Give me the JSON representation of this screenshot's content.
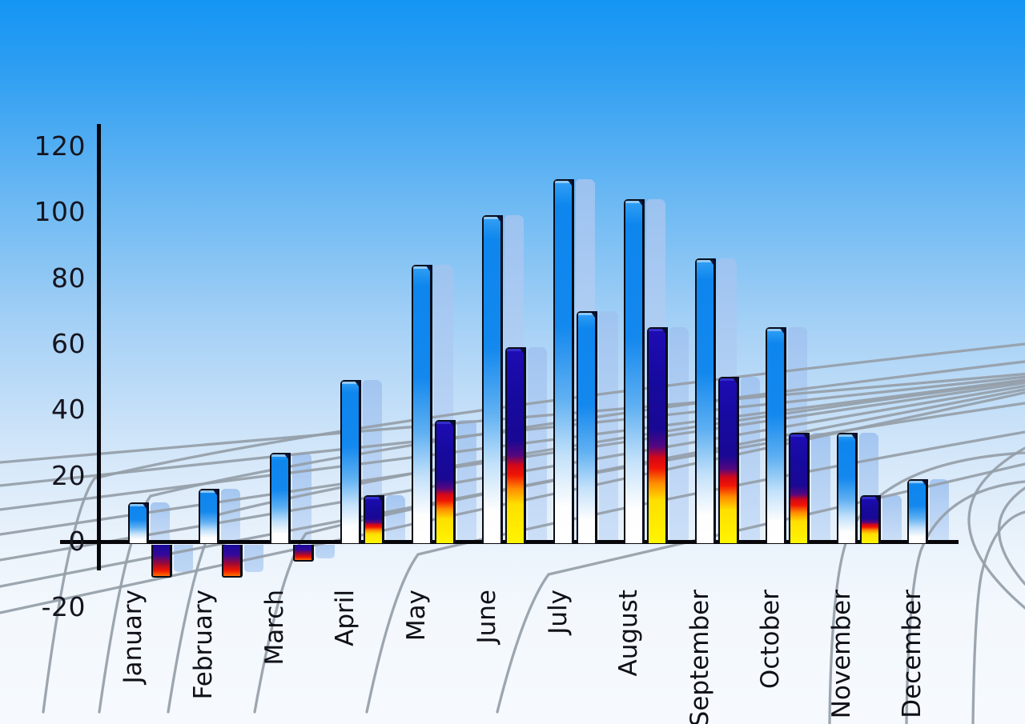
{
  "chart_data": {
    "type": "bar",
    "title": "",
    "xlabel": "",
    "ylabel": "",
    "categories": [
      "January",
      "February",
      "March",
      "April",
      "May",
      "June",
      "July",
      "August",
      "September",
      "October",
      "November",
      "December"
    ],
    "series": [
      {
        "name": "primary",
        "style": "blue-gradient",
        "values": [
          12,
          16,
          27,
          49,
          84,
          99,
          110,
          104,
          86,
          65,
          33,
          19
        ]
      },
      {
        "name": "secondary",
        "style": "navy-red-yellow-gradient",
        "values": [
          -10,
          -10,
          -5,
          14,
          37,
          59,
          70,
          65,
          50,
          33,
          14,
          null
        ],
        "bar_style_overrides": {
          "July": "blue-gradient",
          "December": "absent"
        }
      }
    ],
    "ylim": [
      -20,
      120
    ],
    "yticks": [
      120,
      100,
      80,
      60,
      40,
      20,
      0,
      -20
    ],
    "legend": "none",
    "grid": "decorative curved perspective floor grid",
    "echo_shadow_bars": true
  },
  "colors": {
    "sky_top": "#1495f4",
    "sky_bottom": "#f6fafe",
    "bar_blue": "#0d86ee",
    "bar_navy": "#160a9e",
    "bar_red": "#f01505",
    "bar_yellow": "#fff500",
    "shadow_bar": "#b3cff3",
    "grid_line": "#959ea8",
    "axis": "#07070b",
    "label_text": "#15151f"
  }
}
